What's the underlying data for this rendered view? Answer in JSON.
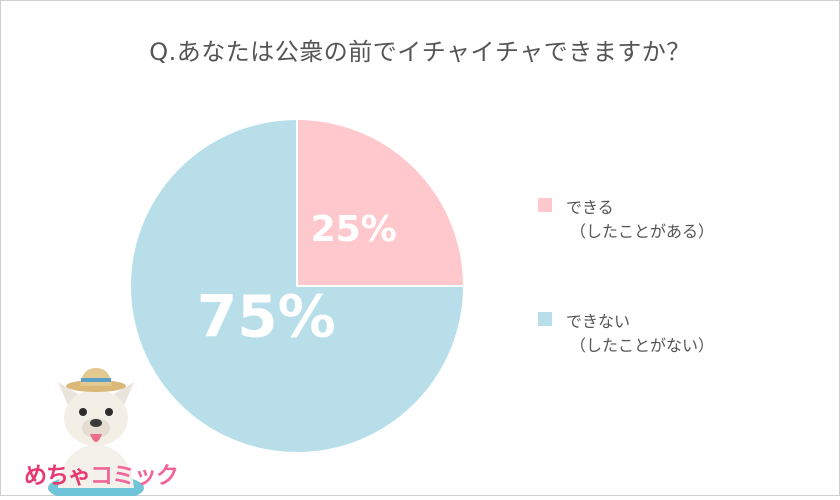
{
  "title": "Q.あなたは公衆の前でイチャイチャできますか？",
  "chart_data": {
    "type": "pie",
    "title": "Q.あなたは公衆の前でイチャイチャできますか？",
    "slices": [
      {
        "label_line1": "できる",
        "label_line2": "（したことがある）",
        "value": 25,
        "value_label": "25%",
        "color": "#ffc8cd"
      },
      {
        "label_line1": "できない",
        "label_line2": "（したことがない）",
        "value": 75,
        "value_label": "75%",
        "color": "#b8dfe9"
      }
    ],
    "legend_position": "right"
  },
  "logo": {
    "text_a": "めちゃ",
    "text_b": "コミック"
  }
}
